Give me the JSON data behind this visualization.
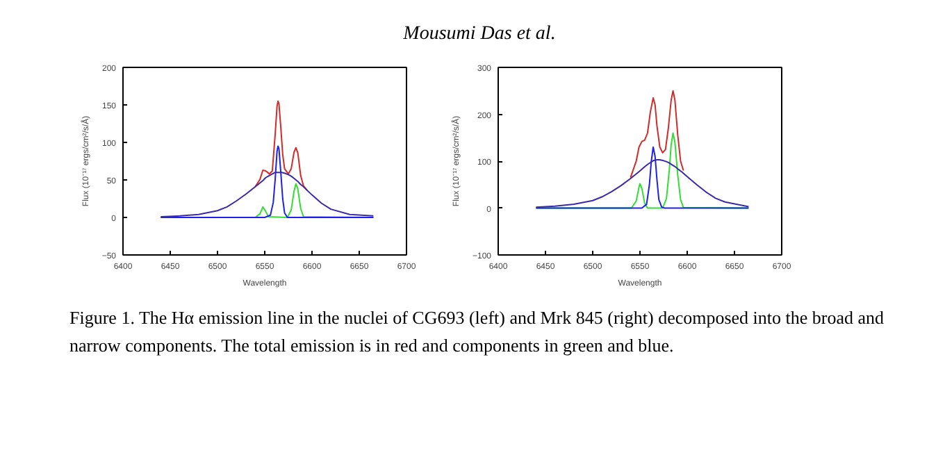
{
  "chart_data": [
    {
      "type": "line",
      "xlabel": "Wavelength",
      "ylabel": "Flux (10⁻¹⁷ ergs/cm²/s/Å)",
      "xlim": [
        6400,
        6700
      ],
      "xticks": [
        6400,
        6450,
        6500,
        6550,
        6600,
        6650,
        6700
      ],
      "ylim": [
        -50,
        200
      ],
      "yticks": [
        -50,
        0,
        50,
        100,
        150,
        200
      ],
      "grid": false,
      "annotations": [
        "Mousumi Das et al.",
        "Figure 1. The Hα emission line in the nuclei of CG693 (left) and Mrk 845 (right) decomposed into the broad and narrow components. The total emission is in red and components in green and blue."
      ],
      "series": [
        {
          "color": "#d42a2a",
          "x": [
            6540,
            6545,
            6548,
            6551,
            6555,
            6558,
            6561,
            6563,
            6564,
            6565,
            6567,
            6569,
            6571,
            6575,
            6578,
            6581,
            6583,
            6585,
            6588,
            6591,
            6595
          ],
          "values": [
            41,
            51,
            63,
            62,
            58,
            62,
            110,
            148,
            155,
            152,
            120,
            84,
            65,
            58,
            65,
            87,
            93,
            86,
            56,
            42,
            36
          ]
        },
        {
          "color": "#33dd33",
          "x": [
            6440,
            6540,
            6545,
            6548,
            6551,
            6554,
            6574,
            6578,
            6581,
            6583,
            6585,
            6588,
            6591,
            6665
          ],
          "values": [
            0,
            0,
            5,
            14,
            8,
            1,
            0,
            10,
            35,
            45,
            38,
            12,
            1,
            0
          ]
        },
        {
          "color": "#2020ee",
          "x": [
            6440,
            6550,
            6556,
            6559,
            6561,
            6563,
            6564,
            6565,
            6567,
            6569,
            6571,
            6574,
            6665
          ],
          "values": [
            0,
            0,
            3,
            20,
            50,
            88,
            95,
            92,
            60,
            25,
            6,
            0,
            0
          ]
        },
        {
          "color": "#3a2aa8",
          "x": [
            6440,
            6460,
            6480,
            6500,
            6510,
            6520,
            6530,
            6540,
            6545,
            6548,
            6551,
            6555,
            6558,
            6561,
            6563,
            6565,
            6568,
            6571,
            6575,
            6578,
            6581,
            6583,
            6585,
            6588,
            6591,
            6595,
            6600,
            6610,
            6620,
            6640,
            6665
          ],
          "values": [
            1,
            2,
            4,
            9,
            14,
            22,
            31,
            41,
            46,
            49,
            53,
            56,
            58,
            60,
            60,
            60,
            60,
            59,
            57,
            55,
            52,
            50,
            48,
            44,
            41,
            36,
            30,
            19,
            11,
            4,
            2
          ]
        }
      ]
    },
    {
      "type": "line",
      "xlabel": "Wavelength",
      "ylabel": "Flux (10⁻¹⁷ ergs/cm²/s/Å)",
      "xlim": [
        6400,
        6700
      ],
      "xticks": [
        6400,
        6450,
        6500,
        6550,
        6600,
        6650,
        6700
      ],
      "ylim": [
        -100,
        300
      ],
      "yticks": [
        -100,
        0,
        100,
        200,
        300
      ],
      "grid": false,
      "series": [
        {
          "color": "#d42a2a",
          "x": [
            6540,
            6546,
            6549,
            6552,
            6555,
            6558,
            6561,
            6564,
            6566,
            6568,
            6571,
            6574,
            6577,
            6580,
            6583,
            6585,
            6587,
            6590,
            6593,
            6596
          ],
          "values": [
            65,
            100,
            130,
            142,
            145,
            160,
            205,
            235,
            220,
            175,
            130,
            118,
            125,
            170,
            230,
            250,
            230,
            155,
            100,
            80
          ]
        },
        {
          "color": "#33dd33",
          "x": [
            6440,
            6541,
            6546,
            6549,
            6550,
            6552,
            6555,
            6558,
            6574,
            6578,
            6581,
            6583,
            6585,
            6587,
            6590,
            6593,
            6596,
            6665
          ],
          "values": [
            0,
            0,
            15,
            45,
            52,
            42,
            10,
            0,
            0,
            20,
            80,
            135,
            160,
            140,
            70,
            18,
            1,
            0
          ]
        },
        {
          "color": "#2020ee",
          "x": [
            6440,
            6552,
            6557,
            6560,
            6562,
            6564,
            6566,
            6568,
            6570,
            6573,
            6576,
            6665
          ],
          "values": [
            0,
            0,
            8,
            50,
            100,
            130,
            110,
            60,
            18,
            2,
            0,
            0
          ]
        },
        {
          "color": "#3a2aa8",
          "x": [
            6440,
            6460,
            6480,
            6500,
            6510,
            6520,
            6530,
            6540,
            6545,
            6548,
            6551,
            6555,
            6558,
            6561,
            6564,
            6568,
            6571,
            6575,
            6578,
            6581,
            6585,
            6588,
            6591,
            6595,
            6600,
            6610,
            6620,
            6630,
            6640,
            6665
          ],
          "values": [
            2,
            4,
            8,
            16,
            24,
            35,
            48,
            63,
            71,
            76,
            81,
            88,
            93,
            97,
            101,
            103,
            103,
            101,
            99,
            96,
            91,
            87,
            82,
            76,
            67,
            50,
            34,
            21,
            13,
            3
          ]
        }
      ]
    }
  ]
}
